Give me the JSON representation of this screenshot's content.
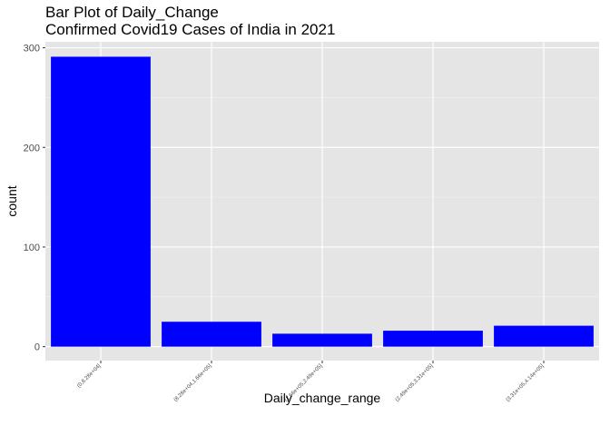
{
  "chart_data": {
    "type": "bar",
    "title": "Bar Plot of Daily_Change",
    "subtitle": "Confirmed Covid19 Cases of India in 2021",
    "xlabel": "Daily_change_range",
    "ylabel": "count",
    "categories": [
      "(0,8.28e+04]",
      "(8.28e+04,1.66e+05]",
      "(1.66e+05,2.49e+05]",
      "(2.49e+05,3.31e+05]",
      "(3.31e+05,4.14e+05]"
    ],
    "values": [
      291,
      25,
      13,
      16,
      21
    ],
    "ylim": [
      -14,
      306
    ],
    "yticks": [
      "0",
      "100",
      "200",
      "300"
    ],
    "bar_color": "#0000ff",
    "panel_color": "#e5e5e5",
    "grid": true,
    "legend": "none"
  }
}
